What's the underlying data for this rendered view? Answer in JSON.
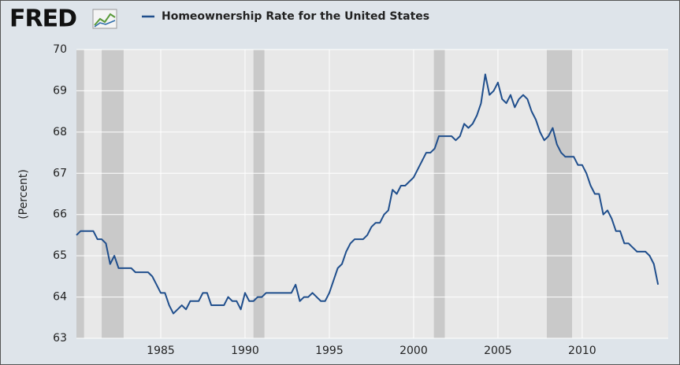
{
  "logo": "FRED",
  "chart_data": {
    "type": "line",
    "ylabel": "(Percent)",
    "series": [
      {
        "name": "Homeownership Rate for the United States",
        "color": "#1f4e8c",
        "values": [
          65.5,
          65.6,
          65.6,
          65.6,
          65.6,
          65.4,
          65.4,
          65.3,
          64.8,
          65.0,
          64.7,
          64.7,
          64.7,
          64.7,
          64.6,
          64.6,
          64.6,
          64.6,
          64.5,
          64.3,
          64.1,
          64.1,
          63.8,
          63.6,
          63.7,
          63.8,
          63.7,
          63.9,
          63.9,
          63.9,
          64.1,
          64.1,
          63.8,
          63.8,
          63.8,
          63.8,
          64.0,
          63.9,
          63.9,
          63.7,
          64.1,
          63.9,
          63.9,
          64.0,
          64.0,
          64.1,
          64.1,
          64.1,
          64.1,
          64.1,
          64.1,
          64.1,
          64.3,
          63.9,
          64.0,
          64.0,
          64.1,
          64.0,
          63.9,
          63.9,
          64.1,
          64.4,
          64.7,
          64.8,
          65.1,
          65.3,
          65.4,
          65.4,
          65.4,
          65.5,
          65.7,
          65.8,
          65.8,
          66.0,
          66.1,
          66.6,
          66.5,
          66.7,
          66.7,
          66.8,
          66.9,
          67.1,
          67.3,
          67.5,
          67.5,
          67.6,
          67.9,
          67.9,
          67.9,
          67.9,
          67.8,
          67.9,
          68.2,
          68.1,
          68.2,
          68.4,
          68.7,
          69.4,
          68.9,
          69.0,
          69.2,
          68.8,
          68.7,
          68.9,
          68.6,
          68.8,
          68.9,
          68.8,
          68.5,
          68.3,
          68.0,
          67.8,
          67.9,
          68.1,
          67.7,
          67.5,
          67.4,
          67.4,
          67.4,
          67.2,
          67.2,
          67.0,
          66.7,
          66.5,
          66.5,
          66.0,
          66.1,
          65.9,
          65.6,
          65.6,
          65.3,
          65.3,
          65.2,
          65.1,
          65.1,
          65.1,
          65.0,
          64.8,
          64.3
        ]
      }
    ],
    "x": [
      1980,
      1980.25,
      1980.5,
      1980.75,
      1981,
      1981.25,
      1981.5,
      1981.75,
      1982,
      1982.25,
      1982.5,
      1982.75,
      1983,
      1983.25,
      1983.5,
      1983.75,
      1984,
      1984.25,
      1984.5,
      1984.75,
      1985,
      1985.25,
      1985.5,
      1985.75,
      1986,
      1986.25,
      1986.5,
      1986.75,
      1987,
      1987.25,
      1987.5,
      1987.75,
      1988,
      1988.25,
      1988.5,
      1988.75,
      1989,
      1989.25,
      1989.5,
      1989.75,
      1990,
      1990.25,
      1990.5,
      1990.75,
      1991,
      1991.25,
      1991.5,
      1991.75,
      1992,
      1992.25,
      1992.5,
      1992.75,
      1993,
      1993.25,
      1993.5,
      1993.75,
      1994,
      1994.25,
      1994.5,
      1994.75,
      1995,
      1995.25,
      1995.5,
      1995.75,
      1996,
      1996.25,
      1996.5,
      1996.75,
      1997,
      1997.25,
      1997.5,
      1997.75,
      1998,
      1998.25,
      1998.5,
      1998.75,
      1999,
      1999.25,
      1999.5,
      1999.75,
      2000,
      2000.25,
      2000.5,
      2000.75,
      2001,
      2001.25,
      2001.5,
      2001.75,
      2002,
      2002.25,
      2002.5,
      2002.75,
      2003,
      2003.25,
      2003.5,
      2003.75,
      2004,
      2004.25,
      2004.5,
      2004.75,
      2005,
      2005.25,
      2005.5,
      2005.75,
      2006,
      2006.25,
      2006.5,
      2006.75,
      2007,
      2007.25,
      2007.5,
      2007.75,
      2008,
      2008.25,
      2008.5,
      2008.75,
      2009,
      2009.25,
      2009.5,
      2009.75,
      2010,
      2010.25,
      2010.5,
      2010.75,
      2011,
      2011.25,
      2011.5,
      2011.75,
      2012,
      2012.25,
      2012.5,
      2012.75,
      2013,
      2013.25,
      2013.5,
      2013.75,
      2014,
      2014.25,
      2014.5
    ],
    "recessions": [
      [
        1980,
        1980.45
      ],
      [
        1981.5,
        1982.8
      ],
      [
        1990.5,
        1991.15
      ],
      [
        2001.2,
        2001.85
      ],
      [
        2007.9,
        2009.4
      ]
    ],
    "recession_color": "#c9c9c9",
    "xlim": [
      1980,
      2015.1
    ],
    "ylim": [
      63,
      70
    ],
    "xticks": [
      1985,
      1990,
      1995,
      2000,
      2005,
      2010
    ],
    "yticks": [
      63,
      64,
      65,
      66,
      67,
      68,
      69,
      70
    ],
    "grid": true
  }
}
